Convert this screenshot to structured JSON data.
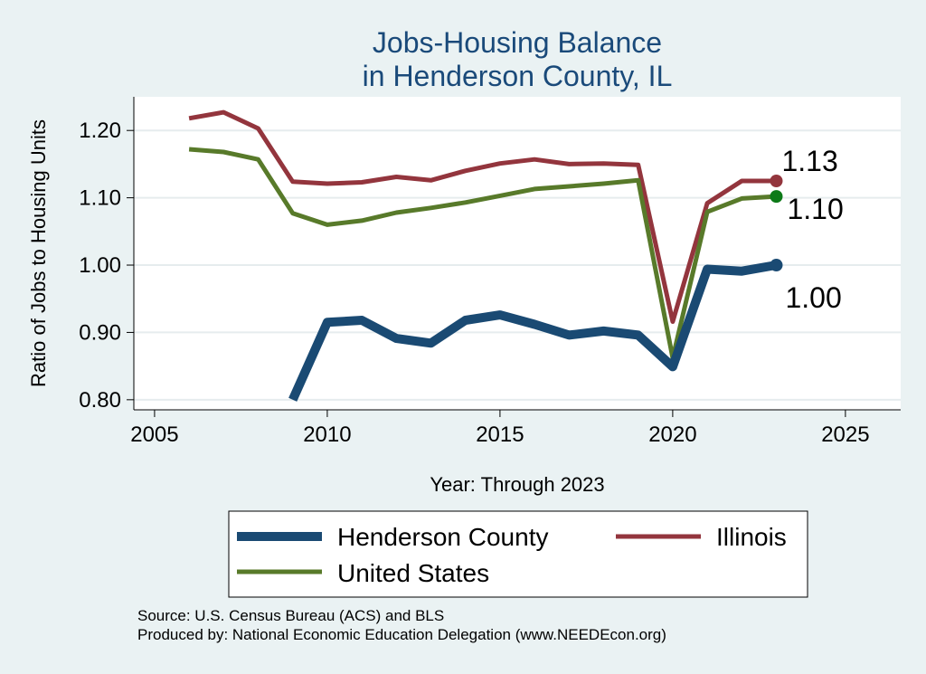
{
  "chart_data": {
    "type": "line",
    "title": "Jobs-Housing Balance",
    "subtitle": "in Henderson County, IL",
    "xlabel": "Year: Through 2023",
    "ylabel": "Ratio of Jobs to Housing Units",
    "xlim": [
      2004.4,
      2026.6
    ],
    "ylim": [
      0.785,
      1.25
    ],
    "xticks": [
      2005,
      2010,
      2015,
      2020,
      2025
    ],
    "xtick_labels": [
      "2005",
      "2010",
      "2015",
      "2020",
      "2025"
    ],
    "yticks": [
      0.8,
      0.9,
      1.0,
      1.1,
      1.2
    ],
    "ytick_labels": [
      "0.80",
      "0.90",
      "1.00",
      "1.10",
      "1.20"
    ],
    "grid": true,
    "legend_position": "bottom",
    "series": [
      {
        "name": "Henderson County",
        "color": "#1a4a73",
        "x": [
          2009,
          2010,
          2011,
          2012,
          2013,
          2014,
          2015,
          2016,
          2017,
          2018,
          2019,
          2020,
          2021,
          2022,
          2023
        ],
        "y": [
          0.8,
          0.915,
          0.918,
          0.891,
          0.884,
          0.918,
          0.926,
          0.912,
          0.896,
          0.902,
          0.896,
          0.849,
          0.994,
          0.991,
          1.0
        ],
        "end_label": "1.00"
      },
      {
        "name": "Illinois",
        "color": "#93353d",
        "x": [
          2006,
          2007,
          2008,
          2009,
          2010,
          2011,
          2012,
          2013,
          2014,
          2015,
          2016,
          2017,
          2018,
          2019,
          2020,
          2021,
          2022,
          2023
        ],
        "y": [
          1.218,
          1.227,
          1.203,
          1.124,
          1.121,
          1.123,
          1.131,
          1.126,
          1.14,
          1.151,
          1.157,
          1.15,
          1.151,
          1.149,
          0.916,
          1.092,
          1.125,
          1.125
        ],
        "end_label": "1.13"
      },
      {
        "name": "United States",
        "color": "#587a2a",
        "x": [
          2006,
          2007,
          2008,
          2009,
          2010,
          2011,
          2012,
          2013,
          2014,
          2015,
          2016,
          2017,
          2018,
          2019,
          2020,
          2021,
          2022,
          2023
        ],
        "y": [
          1.172,
          1.168,
          1.157,
          1.077,
          1.06,
          1.066,
          1.078,
          1.085,
          1.093,
          1.103,
          1.113,
          1.117,
          1.121,
          1.126,
          0.862,
          1.079,
          1.099,
          1.102
        ],
        "end_label": "1.10",
        "end_marker_color": "#0d7a18"
      }
    ]
  },
  "source_note": "Source: U.S. Census Bureau (ACS) and BLS",
  "producer_note": "Produced by: National Economic Education Delegation (www.NEEDEcon.org)"
}
